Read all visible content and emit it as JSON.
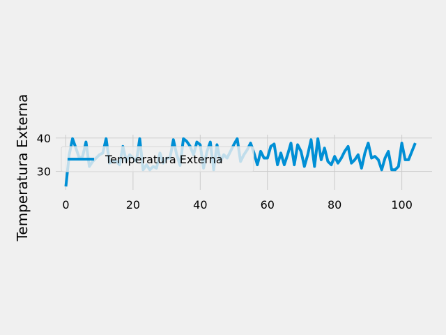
{
  "chart_data": {
    "type": "line",
    "ylabel": "Temperatura Externa",
    "xlabel": "",
    "xlim": [
      -3,
      109
    ],
    "ylim": [
      24.5,
      41
    ],
    "xticks": [
      0,
      20,
      40,
      60,
      80,
      100
    ],
    "yticks": [
      30,
      40
    ],
    "grid": true,
    "legend_position": "upper-left",
    "series": [
      {
        "name": "Temperatura Externa",
        "color": "#008fd5",
        "x": [
          0,
          1,
          2,
          3,
          4,
          5,
          6,
          7,
          8,
          9,
          10,
          11,
          12,
          13,
          14,
          15,
          16,
          17,
          18,
          19,
          20,
          21,
          22,
          23,
          24,
          25,
          26,
          27,
          28,
          29,
          30,
          31,
          32,
          33,
          34,
          35,
          36,
          37,
          38,
          39,
          40,
          41,
          42,
          43,
          44,
          45,
          46,
          47,
          48,
          49,
          50,
          51,
          52,
          53,
          54,
          55,
          56,
          57,
          58,
          59,
          60,
          61,
          62,
          63,
          64,
          65,
          66,
          67,
          68,
          69,
          70,
          71,
          72,
          73,
          74,
          75,
          76,
          77,
          78,
          79,
          80,
          81,
          82,
          83,
          84,
          85,
          86,
          87,
          88,
          89,
          90,
          91,
          92,
          93,
          94,
          95,
          96,
          97,
          98,
          99,
          100,
          101,
          102,
          103,
          104
        ],
        "values": [
          25.5,
          35,
          39.8,
          37,
          34,
          34.5,
          38.8,
          31.5,
          33,
          34,
          35,
          35.5,
          39.8,
          32.5,
          33,
          33,
          32,
          37.5,
          33,
          35,
          34,
          33,
          39.8,
          30.5,
          32,
          30.5,
          31.5,
          31,
          35.5,
          32.5,
          34,
          34,
          39.5,
          35,
          31.8,
          39.8,
          39,
          37.5,
          35,
          38.8,
          38,
          31,
          36,
          38.8,
          30.5,
          38,
          33,
          35,
          34,
          36,
          38,
          39.8,
          33,
          35,
          36.5,
          38.5,
          35.5,
          32,
          36,
          34,
          34,
          37.5,
          38.2,
          32,
          35.5,
          32,
          35,
          38.5,
          32,
          38,
          36,
          31.5,
          35,
          39.5,
          31.5,
          39.8,
          33.5,
          37,
          33,
          32,
          34.5,
          32.5,
          34,
          36,
          37.5,
          32.5,
          33.5,
          35,
          31,
          35.5,
          38.5,
          34,
          34.5,
          33.5,
          30.5,
          34,
          36,
          30.5,
          30.5,
          31.5,
          38.5,
          33.5,
          33.5,
          36,
          38.5
        ]
      }
    ]
  }
}
